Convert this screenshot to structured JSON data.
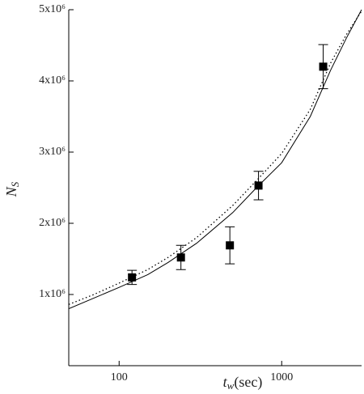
{
  "chart_data": {
    "type": "scatter",
    "xlabel": [
      "t",
      "w",
      "(sec)"
    ],
    "ylabel": [
      "N",
      "S"
    ],
    "xscale": "log",
    "xlim": [
      49,
      3100
    ],
    "ylim": [
      0,
      5000000
    ],
    "xticks": [
      100,
      1000
    ],
    "yticks": [
      {
        "value": 1000000,
        "label": "1x10⁶"
      },
      {
        "value": 2000000,
        "label": "2x10⁶"
      },
      {
        "value": 3000000,
        "label": "3x10⁶"
      },
      {
        "value": 4000000,
        "label": "4x10⁶"
      },
      {
        "value": 5000000,
        "label": "5x10⁶"
      }
    ],
    "series": [
      {
        "kind": "points",
        "marker": "square",
        "color": "#000000",
        "x": [
          120,
          240,
          480,
          720,
          1800
        ],
        "values": [
          1240000,
          1520000,
          1690000,
          2530000,
          4200000
        ],
        "errors": [
          100000,
          170000,
          260000,
          200000,
          310000
        ]
      },
      {
        "kind": "line",
        "dash": "solid",
        "color": "#000000",
        "x": [
          49,
          70,
          100,
          150,
          200,
          300,
          500,
          700,
          1000,
          1500,
          2000,
          2500,
          3100
        ],
        "values": [
          800000,
          950000,
          1100000,
          1280000,
          1450000,
          1720000,
          2150000,
          2500000,
          2850000,
          3500000,
          4150000,
          4600000,
          5000000
        ]
      },
      {
        "kind": "line",
        "dash": "dotted",
        "color": "#000000",
        "x": [
          49,
          70,
          100,
          150,
          200,
          300,
          500,
          700,
          1000,
          1500,
          2000,
          2500,
          3100
        ],
        "values": [
          860000,
          1000000,
          1160000,
          1350000,
          1520000,
          1800000,
          2250000,
          2600000,
          2980000,
          3600000,
          4250000,
          4650000,
          4980000
        ]
      }
    ]
  }
}
